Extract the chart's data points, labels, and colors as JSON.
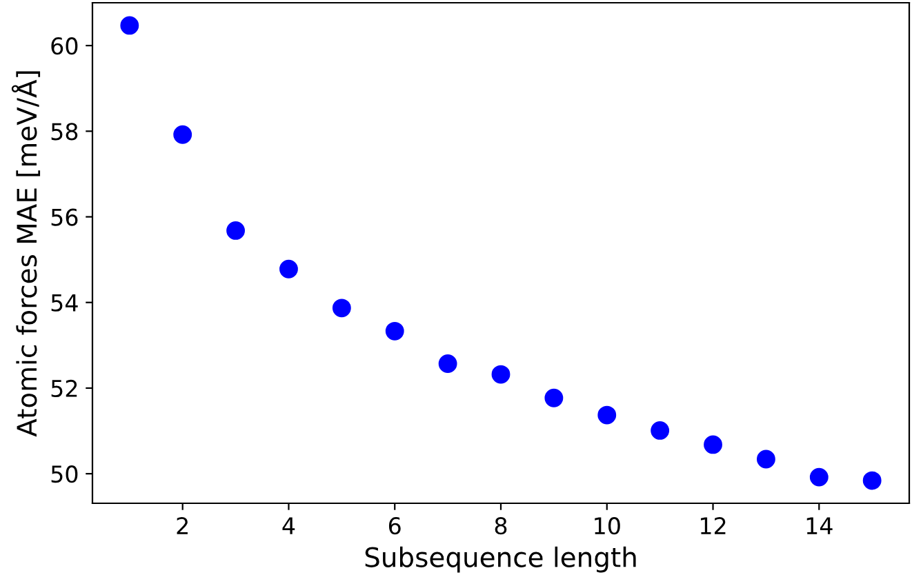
{
  "chart_data": {
    "type": "scatter",
    "xlabel": "Subsequence length",
    "ylabel": "Atomic forces MAE [meV/Å]",
    "x": [
      1,
      2,
      3,
      4,
      5,
      6,
      7,
      8,
      9,
      10,
      11,
      12,
      13,
      14,
      15
    ],
    "series": [
      {
        "color": "#0000ff",
        "values": [
          60.47,
          57.92,
          55.68,
          54.78,
          53.87,
          53.33,
          52.57,
          52.32,
          51.77,
          51.37,
          51.01,
          50.68,
          50.34,
          49.92,
          49.84
        ]
      }
    ],
    "xlim": [
      0.3,
      15.7
    ],
    "ylim": [
      49.31,
      61.0
    ],
    "xticks": [
      2,
      4,
      6,
      8,
      10,
      12,
      14
    ],
    "yticks": [
      50,
      52,
      54,
      56,
      58,
      60
    ],
    "marker": "circle",
    "grid": false,
    "legend": false
  }
}
